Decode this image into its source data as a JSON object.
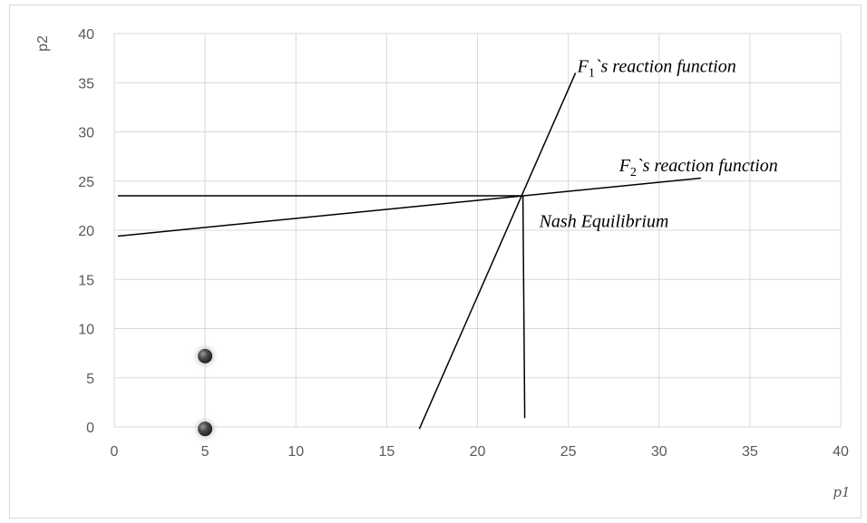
{
  "chart_data": {
    "type": "line",
    "xlabel": "p1",
    "ylabel": "p2",
    "xlim": [
      0,
      40
    ],
    "ylim": [
      0,
      40
    ],
    "xticks": [
      0,
      5,
      10,
      15,
      20,
      25,
      30,
      35,
      40
    ],
    "yticks": [
      0,
      5,
      10,
      15,
      20,
      25,
      30,
      35,
      40
    ],
    "grid": true,
    "series": [
      {
        "name": "F1`s reaction function",
        "points": [
          [
            16.8,
            -0.2
          ],
          [
            25.4,
            36.0
          ]
        ]
      },
      {
        "name": "F2`s reaction function",
        "points": [
          [
            0.2,
            19.4
          ],
          [
            32.3,
            25.3
          ]
        ]
      },
      {
        "name": "",
        "points": [
          [
            0.2,
            23.5
          ],
          [
            22.5,
            23.5
          ]
        ]
      },
      {
        "name": "",
        "points": [
          [
            22.5,
            23.5
          ],
          [
            22.6,
            0.9
          ]
        ]
      }
    ],
    "markers": [
      [
        5,
        7.2
      ],
      [
        5,
        -0.2
      ]
    ],
    "annotations": [
      {
        "label_main": "F",
        "label_sub": "1",
        "label_rest": "`s reaction function",
        "x": 25.5,
        "y": 36.1
      },
      {
        "label_main": "F",
        "label_sub": "2",
        "label_rest": "`s reaction function",
        "x": 27.8,
        "y": 26.0
      },
      {
        "text": "Nash Equilibrium",
        "x": 23.4,
        "y": 20.3
      }
    ]
  }
}
